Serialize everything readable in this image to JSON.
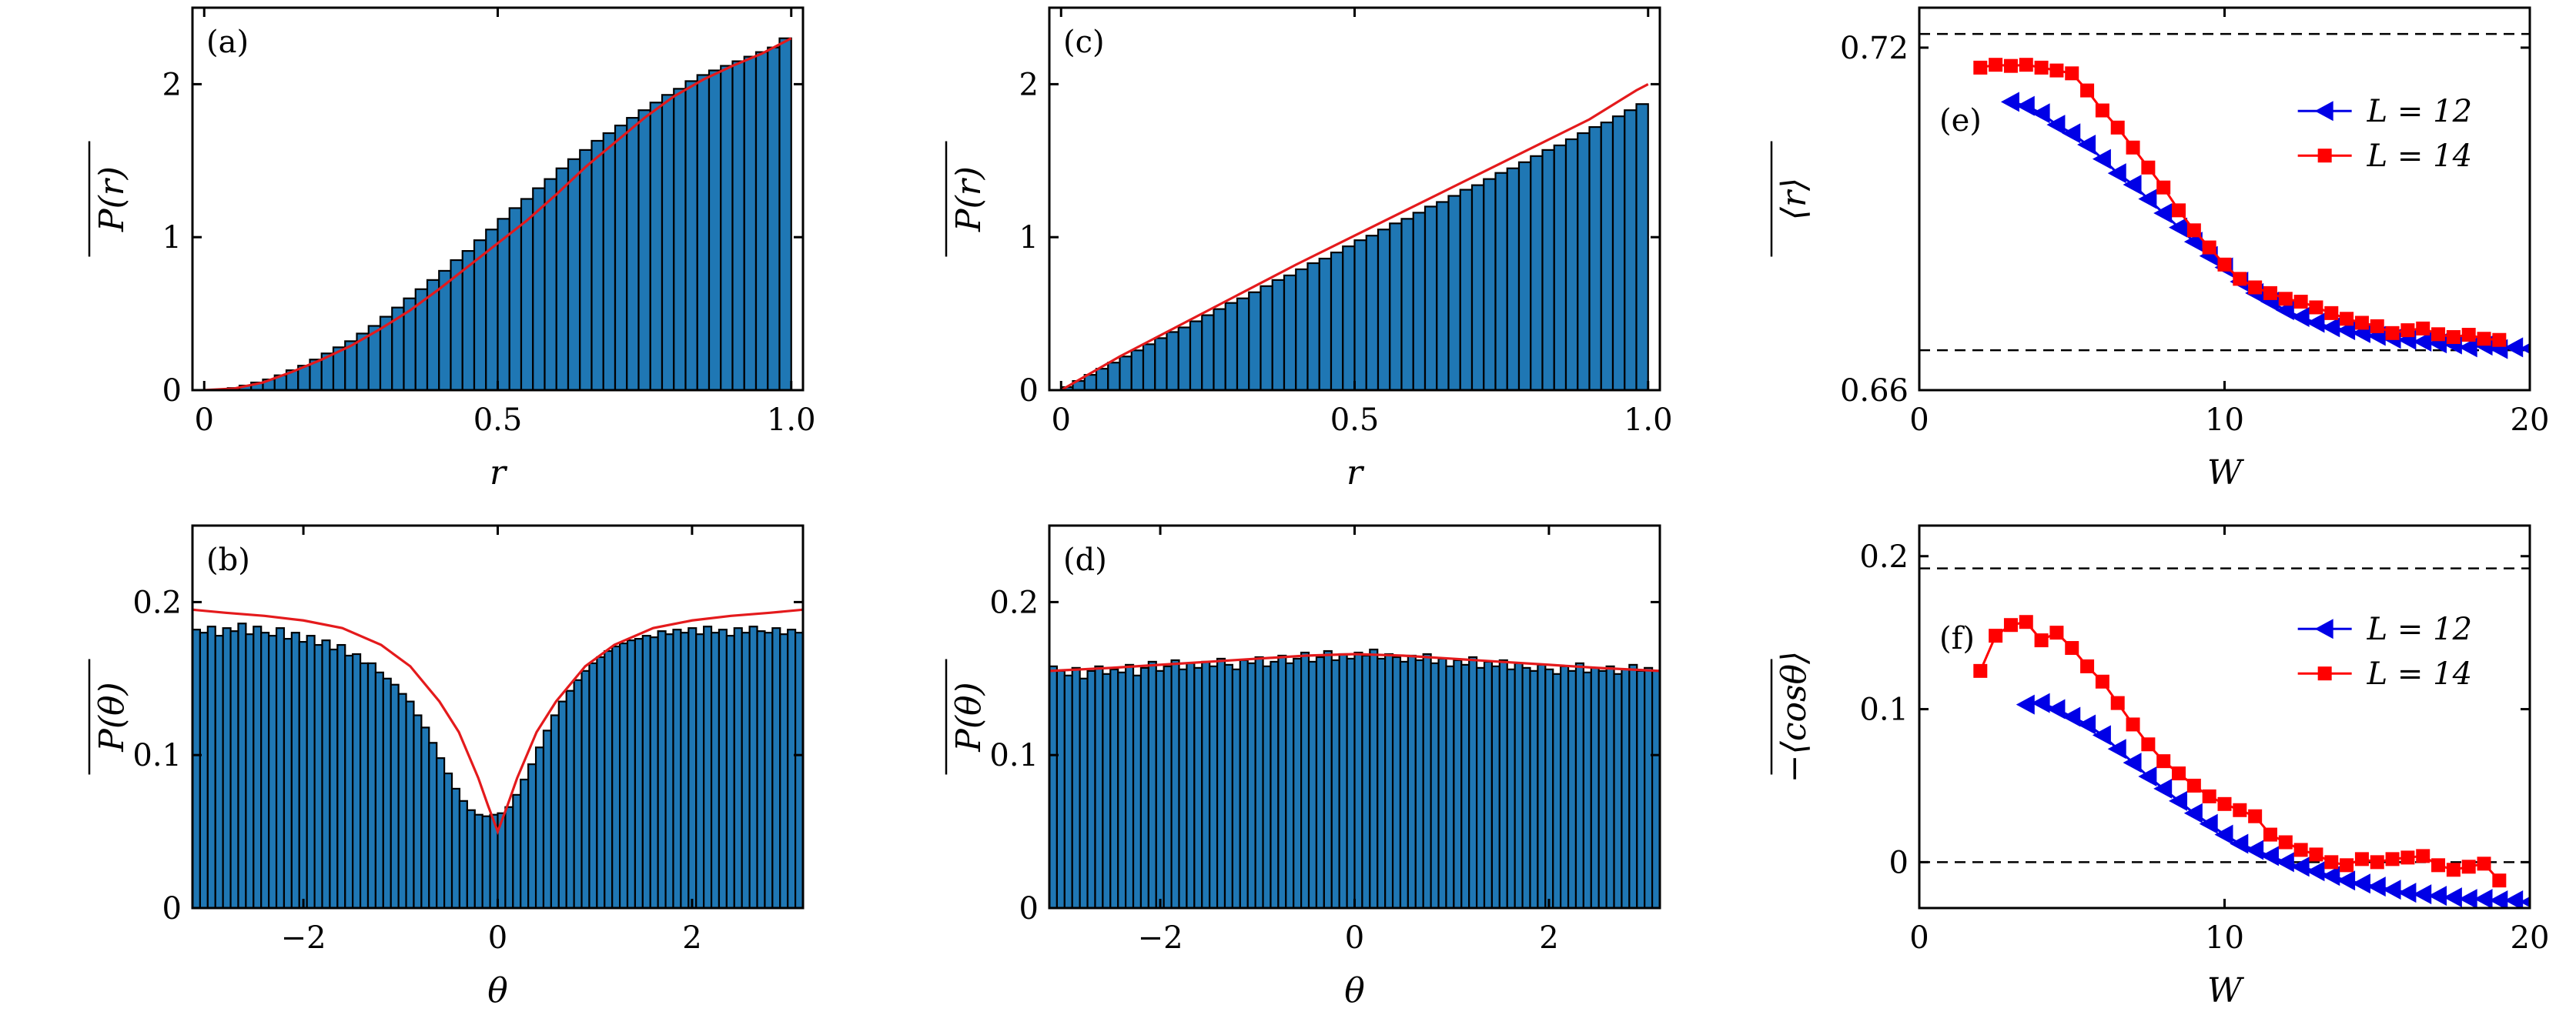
{
  "colors": {
    "bar": "#1f77b4",
    "curve": "#e41a1c",
    "L12": "#0000e6",
    "L14": "#ff0000"
  },
  "chart_data": [
    {
      "id": "a",
      "type": "bar",
      "panel_label": "(a)",
      "xlabel": "r",
      "ylabel": "P(r)",
      "xlim": [
        -0.02,
        1.02
      ],
      "ylim": [
        0,
        2.5
      ],
      "xticks": [
        0,
        0.5,
        1.0
      ],
      "xtick_labels": [
        "0",
        "0.5",
        "1.0"
      ],
      "yticks": [
        0,
        1,
        2
      ],
      "ytick_labels": [
        "0",
        "1",
        "2"
      ],
      "bins": {
        "start": 0,
        "end": 1,
        "count": 50
      },
      "bar_values": [
        0.0,
        0.004,
        0.014,
        0.03,
        0.05,
        0.07,
        0.097,
        0.13,
        0.16,
        0.2,
        0.24,
        0.28,
        0.32,
        0.37,
        0.42,
        0.48,
        0.54,
        0.6,
        0.66,
        0.72,
        0.78,
        0.85,
        0.91,
        0.98,
        1.05,
        1.12,
        1.19,
        1.25,
        1.32,
        1.38,
        1.45,
        1.51,
        1.57,
        1.63,
        1.68,
        1.73,
        1.78,
        1.83,
        1.88,
        1.93,
        1.97,
        2.02,
        2.06,
        2.09,
        2.12,
        2.15,
        2.18,
        2.21,
        2.24,
        2.3
      ],
      "curve": {
        "x": [
          0,
          0.05,
          0.1,
          0.15,
          0.2,
          0.25,
          0.3,
          0.35,
          0.4,
          0.45,
          0.5,
          0.55,
          0.6,
          0.65,
          0.7,
          0.75,
          0.8,
          0.85,
          0.9,
          0.95,
          1.0
        ],
        "y": [
          0,
          0.01,
          0.05,
          0.12,
          0.2,
          0.29,
          0.4,
          0.52,
          0.66,
          0.81,
          0.96,
          1.11,
          1.28,
          1.46,
          1.62,
          1.78,
          1.92,
          2.03,
          2.12,
          2.2,
          2.3
        ]
      }
    },
    {
      "id": "b",
      "type": "bar",
      "panel_label": "(b)",
      "xlabel": "θ",
      "ylabel": "P(θ)",
      "xlim": [
        -3.1416,
        3.1416
      ],
      "ylim": [
        0,
        0.25
      ],
      "xticks": [
        -2,
        0,
        2
      ],
      "xtick_labels": [
        "−2",
        "0",
        "2"
      ],
      "yticks": [
        0,
        0.1,
        0.2
      ],
      "ytick_labels": [
        "0",
        "0.1",
        "0.2"
      ],
      "bins": {
        "start": -3.1416,
        "end": 3.1416,
        "count": 80
      },
      "bar_values": [
        0.182,
        0.18,
        0.184,
        0.178,
        0.183,
        0.181,
        0.186,
        0.179,
        0.184,
        0.18,
        0.178,
        0.183,
        0.176,
        0.18,
        0.174,
        0.178,
        0.172,
        0.175,
        0.169,
        0.172,
        0.165,
        0.166,
        0.16,
        0.16,
        0.154,
        0.15,
        0.146,
        0.14,
        0.135,
        0.126,
        0.118,
        0.108,
        0.098,
        0.088,
        0.078,
        0.07,
        0.064,
        0.061,
        0.06,
        0.061,
        0.062,
        0.066,
        0.074,
        0.084,
        0.094,
        0.105,
        0.116,
        0.126,
        0.135,
        0.142,
        0.149,
        0.155,
        0.16,
        0.164,
        0.168,
        0.171,
        0.173,
        0.175,
        0.176,
        0.178,
        0.177,
        0.181,
        0.179,
        0.182,
        0.18,
        0.183,
        0.179,
        0.184,
        0.18,
        0.182,
        0.178,
        0.183,
        0.18,
        0.184,
        0.181,
        0.18,
        0.183,
        0.179,
        0.182,
        0.18
      ],
      "curve": {
        "x": [
          -3.14,
          -2.8,
          -2.4,
          -2.0,
          -1.6,
          -1.2,
          -0.9,
          -0.6,
          -0.4,
          -0.2,
          -0.1,
          0,
          0.1,
          0.2,
          0.4,
          0.6,
          0.9,
          1.2,
          1.6,
          2.0,
          2.4,
          2.8,
          3.14
        ],
        "y": [
          0.195,
          0.193,
          0.191,
          0.188,
          0.183,
          0.172,
          0.158,
          0.135,
          0.115,
          0.085,
          0.067,
          0.05,
          0.067,
          0.085,
          0.115,
          0.135,
          0.158,
          0.172,
          0.183,
          0.188,
          0.191,
          0.193,
          0.195
        ]
      }
    },
    {
      "id": "c",
      "type": "bar",
      "panel_label": "(c)",
      "xlabel": "r",
      "ylabel": "P(r)",
      "xlim": [
        -0.02,
        1.02
      ],
      "ylim": [
        0,
        2.5
      ],
      "xticks": [
        0,
        0.5,
        1.0
      ],
      "xtick_labels": [
        "0",
        "0.5",
        "1.0"
      ],
      "yticks": [
        0,
        1,
        2
      ],
      "ytick_labels": [
        "0",
        "1",
        "2"
      ],
      "bins": {
        "start": 0,
        "end": 1,
        "count": 50
      },
      "bar_values": [
        0.02,
        0.06,
        0.1,
        0.14,
        0.18,
        0.22,
        0.26,
        0.3,
        0.34,
        0.38,
        0.41,
        0.45,
        0.49,
        0.53,
        0.57,
        0.6,
        0.64,
        0.68,
        0.72,
        0.75,
        0.79,
        0.83,
        0.86,
        0.9,
        0.94,
        0.98,
        1.01,
        1.05,
        1.09,
        1.12,
        1.16,
        1.2,
        1.23,
        1.27,
        1.31,
        1.34,
        1.38,
        1.42,
        1.45,
        1.49,
        1.53,
        1.57,
        1.6,
        1.64,
        1.68,
        1.72,
        1.75,
        1.79,
        1.83,
        1.87
      ],
      "curve": {
        "x": [
          0,
          0.1,
          0.2,
          0.3,
          0.4,
          0.5,
          0.6,
          0.7,
          0.8,
          0.9,
          0.98,
          1.0
        ],
        "y": [
          0,
          0.22,
          0.42,
          0.62,
          0.82,
          1.01,
          1.2,
          1.39,
          1.58,
          1.77,
          1.96,
          2.0
        ]
      }
    },
    {
      "id": "d",
      "type": "bar",
      "panel_label": "(d)",
      "xlabel": "θ",
      "ylabel": "P(θ)",
      "xlim": [
        -3.1416,
        3.1416
      ],
      "ylim": [
        0,
        0.25
      ],
      "xticks": [
        -2,
        0,
        2
      ],
      "xtick_labels": [
        "−2",
        "0",
        "2"
      ],
      "yticks": [
        0,
        0.1,
        0.2
      ],
      "ytick_labels": [
        "0",
        "0.1",
        "0.2"
      ],
      "bins": {
        "start": -3.1416,
        "end": 3.1416,
        "count": 80
      },
      "bar_values": [
        0.158,
        0.155,
        0.152,
        0.157,
        0.15,
        0.155,
        0.158,
        0.153,
        0.156,
        0.154,
        0.159,
        0.152,
        0.157,
        0.161,
        0.155,
        0.158,
        0.162,
        0.156,
        0.16,
        0.157,
        0.161,
        0.158,
        0.163,
        0.159,
        0.156,
        0.162,
        0.16,
        0.164,
        0.158,
        0.161,
        0.165,
        0.16,
        0.163,
        0.167,
        0.161,
        0.164,
        0.168,
        0.162,
        0.166,
        0.163,
        0.167,
        0.165,
        0.169,
        0.163,
        0.166,
        0.164,
        0.161,
        0.165,
        0.162,
        0.166,
        0.16,
        0.163,
        0.158,
        0.162,
        0.159,
        0.164,
        0.157,
        0.161,
        0.158,
        0.162,
        0.156,
        0.16,
        0.157,
        0.155,
        0.159,
        0.156,
        0.153,
        0.158,
        0.155,
        0.16,
        0.154,
        0.157,
        0.155,
        0.158,
        0.153,
        0.156,
        0.159,
        0.155,
        0.157,
        0.155
      ],
      "curve": {
        "x": [
          -3.14,
          -2.5,
          -2.0,
          -1.5,
          -1.0,
          -0.5,
          0,
          0.5,
          1.0,
          1.5,
          2.0,
          2.5,
          3.14
        ],
        "y": [
          0.155,
          0.157,
          0.159,
          0.161,
          0.163,
          0.165,
          0.166,
          0.165,
          0.163,
          0.161,
          0.159,
          0.157,
          0.155
        ]
      }
    },
    {
      "id": "e",
      "type": "line",
      "panel_label": "(e)",
      "xlabel": "W",
      "ylabel": "⟨r⟩",
      "xlim": [
        0,
        20
      ],
      "ylim": [
        0.66,
        0.727
      ],
      "xticks": [
        0,
        10,
        20
      ],
      "xtick_labels": [
        "0",
        "10",
        "20"
      ],
      "yticks": [
        0.66,
        0.72
      ],
      "ytick_labels": [
        "0.66",
        "0.72"
      ],
      "hlines": [
        0.7224,
        0.667
      ],
      "legend_position": "upper-right",
      "series": [
        {
          "name": "L = 12",
          "marker": "triangle-left",
          "color": "#0000e6",
          "x": [
            3.0,
            3.5,
            4.0,
            4.5,
            5.0,
            5.5,
            6.0,
            6.5,
            7.0,
            7.5,
            8.0,
            8.5,
            9.0,
            9.5,
            10.0,
            10.5,
            11.0,
            11.5,
            12.0,
            12.5,
            13.0,
            13.5,
            14.0,
            14.5,
            15.0,
            15.5,
            16.0,
            16.5,
            17.0,
            17.5,
            18.0,
            18.5,
            19.0,
            19.5,
            20.0
          ],
          "y": [
            0.7105,
            0.7098,
            0.7085,
            0.7065,
            0.705,
            0.703,
            0.7005,
            0.698,
            0.696,
            0.6935,
            0.691,
            0.6885,
            0.686,
            0.6835,
            0.6815,
            0.679,
            0.677,
            0.6755,
            0.674,
            0.6728,
            0.6718,
            0.671,
            0.6705,
            0.67,
            0.6695,
            0.669,
            0.6688,
            0.6685,
            0.6682,
            0.668,
            0.6675,
            0.6678,
            0.6672,
            0.6675,
            0.6673
          ]
        },
        {
          "name": "L = 14",
          "marker": "square",
          "color": "#ff0000",
          "x": [
            2.0,
            2.5,
            3.0,
            3.5,
            4.0,
            4.5,
            5.0,
            5.5,
            6.0,
            6.5,
            7.0,
            7.5,
            8.0,
            8.5,
            9.0,
            9.5,
            10.0,
            10.5,
            11.0,
            11.5,
            12.0,
            12.5,
            13.0,
            13.5,
            14.0,
            14.5,
            15.0,
            15.5,
            16.0,
            16.5,
            17.0,
            17.5,
            18.0,
            18.5,
            19.0
          ],
          "y": [
            0.7165,
            0.717,
            0.7168,
            0.717,
            0.7165,
            0.716,
            0.7155,
            0.7125,
            0.709,
            0.706,
            0.7025,
            0.699,
            0.6955,
            0.6915,
            0.688,
            0.685,
            0.682,
            0.6795,
            0.678,
            0.677,
            0.676,
            0.6755,
            0.6745,
            0.6735,
            0.6725,
            0.6718,
            0.6712,
            0.67,
            0.6705,
            0.6708,
            0.6698,
            0.6693,
            0.6697,
            0.669,
            0.6688
          ]
        }
      ]
    },
    {
      "id": "f",
      "type": "line",
      "panel_label": "(f)",
      "xlabel": "W",
      "ylabel": "−⟨cosθ⟩",
      "xlim": [
        0,
        20
      ],
      "ylim": [
        -0.03,
        0.22
      ],
      "xticks": [
        0,
        10,
        20
      ],
      "xtick_labels": [
        "0",
        "10",
        "20"
      ],
      "yticks": [
        0,
        0.1,
        0.2
      ],
      "ytick_labels": [
        "0",
        "0.1",
        "0.2"
      ],
      "hlines": [
        0.192,
        0
      ],
      "legend_position": "upper-right",
      "series": [
        {
          "name": "L = 12",
          "marker": "triangle-left",
          "color": "#0000e6",
          "x": [
            3.5,
            4.0,
            4.5,
            5.0,
            5.5,
            6.0,
            6.5,
            7.0,
            7.5,
            8.0,
            8.5,
            9.0,
            9.5,
            10.0,
            10.5,
            11.0,
            11.5,
            12.0,
            12.5,
            13.0,
            13.5,
            14.0,
            14.5,
            15.0,
            15.5,
            16.0,
            16.5,
            17.0,
            17.5,
            18.0,
            18.5,
            19.0,
            19.5,
            20.0
          ],
          "y": [
            0.103,
            0.104,
            0.1,
            0.095,
            0.09,
            0.083,
            0.074,
            0.065,
            0.056,
            0.048,
            0.04,
            0.032,
            0.025,
            0.018,
            0.012,
            0.008,
            0.004,
            0.0,
            -0.003,
            -0.006,
            -0.009,
            -0.012,
            -0.014,
            -0.016,
            -0.018,
            -0.02,
            -0.021,
            -0.022,
            -0.023,
            -0.024,
            -0.024,
            -0.025,
            -0.025,
            -0.026
          ]
        },
        {
          "name": "L = 14",
          "marker": "square",
          "color": "#ff0000",
          "x": [
            2.0,
            2.5,
            3.0,
            3.5,
            4.0,
            4.5,
            5.0,
            5.5,
            6.0,
            6.5,
            7.0,
            7.5,
            8.0,
            8.5,
            9.0,
            9.5,
            10.0,
            10.5,
            11.0,
            11.5,
            12.0,
            12.5,
            13.0,
            13.5,
            14.0,
            14.5,
            15.0,
            15.5,
            16.0,
            16.5,
            17.0,
            17.5,
            18.0,
            18.5,
            19.0
          ],
          "y": [
            0.125,
            0.148,
            0.155,
            0.157,
            0.145,
            0.15,
            0.14,
            0.128,
            0.118,
            0.104,
            0.09,
            0.077,
            0.066,
            0.058,
            0.05,
            0.043,
            0.038,
            0.034,
            0.03,
            0.018,
            0.013,
            0.008,
            0.005,
            0.0,
            -0.002,
            0.002,
            0.0,
            0.002,
            0.003,
            0.004,
            -0.002,
            -0.005,
            -0.003,
            -0.001,
            -0.012
          ]
        }
      ]
    }
  ]
}
